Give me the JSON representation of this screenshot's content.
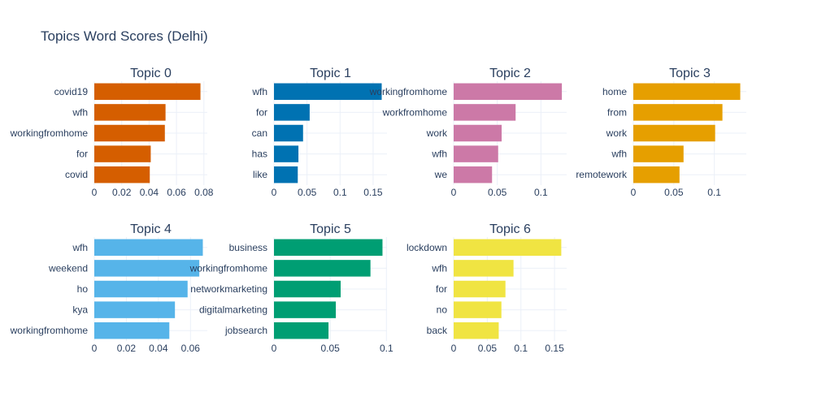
{
  "title": "Topics Word Scores (Delhi)",
  "chart_data": {
    "type": "bar",
    "orientation": "horizontal",
    "title": "Topics Word Scores (Delhi)",
    "grid": true,
    "legend": "none",
    "subplots": [
      {
        "title": "Topic 0",
        "color": "#D55E00",
        "categories": [
          "covid19",
          "wfh",
          "workingfromhome",
          "for",
          "covid"
        ],
        "values": [
          0.0775,
          0.052,
          0.0515,
          0.0412,
          0.0405
        ],
        "xlim": [
          0,
          0.0825
        ],
        "ticks": [
          0,
          0.02,
          0.04,
          0.06,
          0.08
        ],
        "tick_labels": [
          "0",
          "0.02",
          "0.04",
          "0.06",
          "0.08"
        ]
      },
      {
        "title": "Topic 1",
        "color": "#0072B2",
        "categories": [
          "wfh",
          "for",
          "can",
          "has",
          "like"
        ],
        "values": [
          0.163,
          0.054,
          0.044,
          0.037,
          0.036
        ],
        "xlim": [
          0,
          0.171
        ],
        "ticks": [
          0,
          0.05,
          0.1,
          0.15
        ],
        "tick_labels": [
          "0",
          "0.05",
          "0.1",
          "0.15"
        ]
      },
      {
        "title": "Topic 2",
        "color": "#CC79A7",
        "categories": [
          "workingfromhome",
          "workfromhome",
          "work",
          "wfh",
          "we"
        ],
        "values": [
          0.124,
          0.071,
          0.055,
          0.051,
          0.044
        ],
        "xlim": [
          0,
          0.1295
        ],
        "ticks": [
          0,
          0.05,
          0.1
        ],
        "tick_labels": [
          "0",
          "0.05",
          "0.1"
        ]
      },
      {
        "title": "Topic 3",
        "color": "#E69F00",
        "categories": [
          "home",
          "from",
          "work",
          "wfh",
          "remotework"
        ],
        "values": [
          0.132,
          0.11,
          0.101,
          0.062,
          0.057
        ],
        "xlim": [
          0,
          0.1395
        ],
        "ticks": [
          0,
          0.05,
          0.1
        ],
        "tick_labels": [
          "0",
          "0.05",
          "0.1"
        ]
      },
      {
        "title": "Topic 4",
        "color": "#56B4E9",
        "categories": [
          "wfh",
          "weekend",
          "ho",
          "kya",
          "workingfromhome"
        ],
        "values": [
          0.0677,
          0.0655,
          0.0582,
          0.0503,
          0.0468
        ],
        "xlim": [
          0,
          0.0705
        ],
        "ticks": [
          0,
          0.02,
          0.04,
          0.06
        ],
        "tick_labels": [
          "0",
          "0.02",
          "0.04",
          "0.06"
        ]
      },
      {
        "title": "Topic 5",
        "color": "#009E73",
        "categories": [
          "business",
          "workingfromhome",
          "networkmarketing",
          "digitalmarketing",
          "jobsearch"
        ],
        "values": [
          0.0965,
          0.0858,
          0.0593,
          0.055,
          0.0485
        ],
        "xlim": [
          0,
          0.1005
        ],
        "ticks": [
          0,
          0.05,
          0.1
        ],
        "tick_labels": [
          "0",
          "0.05",
          "0.1"
        ]
      },
      {
        "title": "Topic 6",
        "color": "#F0E442",
        "categories": [
          "lockdown",
          "wfh",
          "for",
          "no",
          "back"
        ],
        "values": [
          0.16,
          0.089,
          0.077,
          0.071,
          0.067
        ],
        "xlim": [
          0,
          0.168
        ],
        "ticks": [
          0,
          0.05,
          0.1,
          0.15
        ],
        "tick_labels": [
          "0",
          "0.05",
          "0.1",
          "0.15"
        ]
      }
    ]
  }
}
